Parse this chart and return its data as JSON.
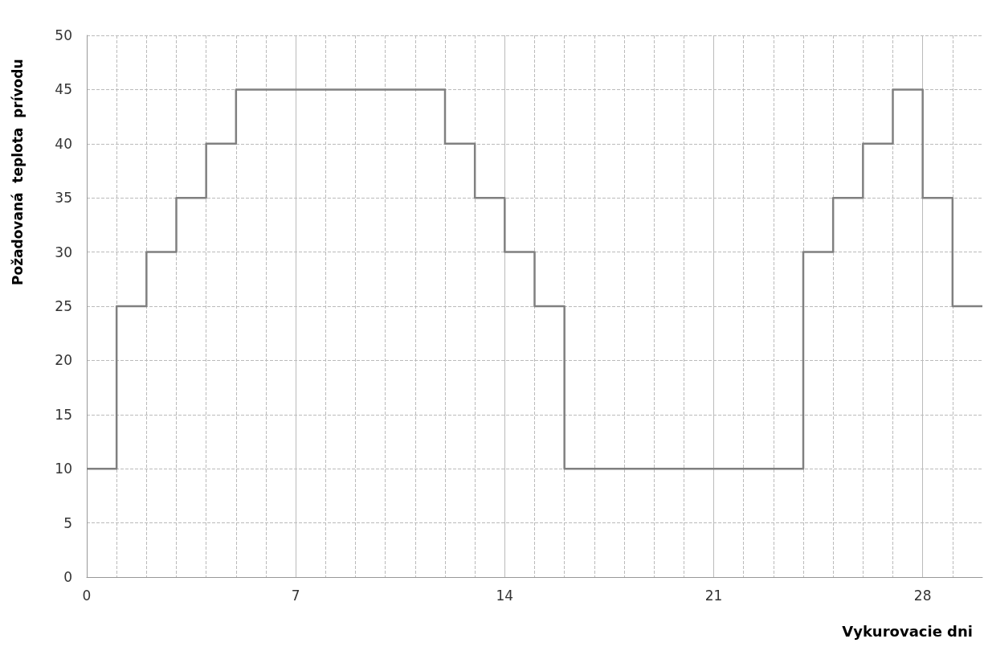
{
  "chart_data": {
    "type": "step",
    "xlabel": "Vykurovacie dni",
    "ylabel": "Požadovaná  teplota  prívodu",
    "x": [
      0,
      1,
      2,
      3,
      4,
      5,
      12,
      13,
      14,
      15,
      16,
      24,
      25,
      26,
      27,
      28,
      29,
      30
    ],
    "values": [
      10,
      25,
      30,
      35,
      40,
      45,
      40,
      35,
      30,
      25,
      10,
      30,
      35,
      40,
      45,
      35,
      25,
      25
    ],
    "color": "#808080",
    "xlim": [
      0,
      30
    ],
    "xticks": [
      0,
      7,
      14,
      21,
      28
    ],
    "ylim": [
      0,
      50
    ],
    "yticks": [
      0,
      5,
      10,
      15,
      20,
      25,
      30,
      35,
      40,
      45,
      50
    ],
    "grid": true,
    "marker": "none",
    "line_style": "solid"
  }
}
